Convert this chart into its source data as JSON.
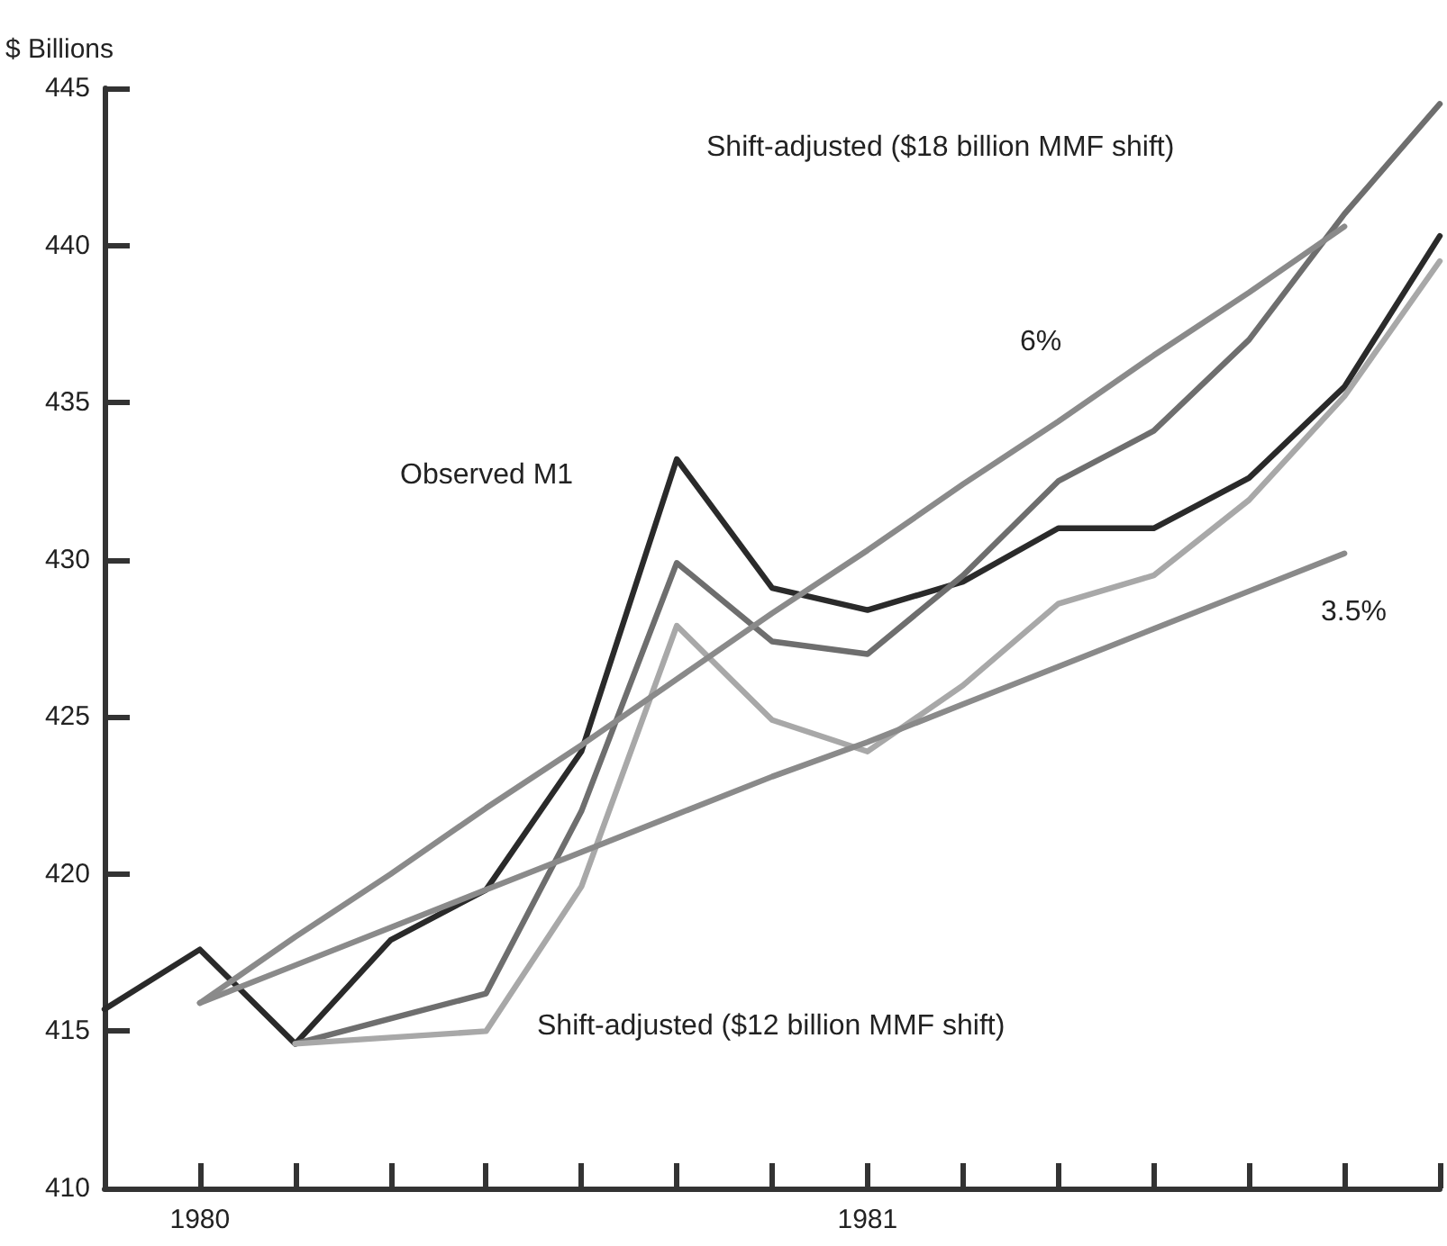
{
  "chart_data": {
    "type": "line",
    "ylabel": "$ Billions",
    "categories": [
      null,
      "1980",
      null,
      null,
      null,
      null,
      null,
      null,
      "1981",
      null,
      null,
      null,
      null,
      null,
      null
    ],
    "ylim": [
      410,
      445
    ],
    "yticks": [
      410,
      415,
      420,
      425,
      430,
      435,
      440,
      445
    ],
    "grid": false,
    "marker": "none",
    "line_style": "solid",
    "series": [
      {
        "color": "#2a2a2a",
        "values": [
          415.7,
          417.6,
          414.6,
          417.9,
          419.5,
          423.9,
          433.2,
          429.1,
          428.4,
          429.3,
          431.0,
          431.0,
          432.6,
          435.5,
          440.3
        ]
      },
      {
        "color": "#6e6e6e",
        "values": [
          null,
          null,
          414.6,
          415.4,
          416.2,
          422.0,
          429.9,
          427.4,
          427.0,
          429.5,
          432.5,
          434.1,
          437.0,
          441.0,
          444.5
        ]
      },
      {
        "color": "#a8a8a8",
        "values": [
          null,
          null,
          414.6,
          414.8,
          415.0,
          419.6,
          427.9,
          424.9,
          423.9,
          426.0,
          428.6,
          429.5,
          431.9,
          435.2,
          439.5
        ]
      },
      {
        "color": "#8a8a8a",
        "values": [
          null,
          415.9,
          418.0,
          420.0,
          422.1,
          424.1,
          426.2,
          428.3,
          430.3,
          432.4,
          434.4,
          436.5,
          438.5,
          440.6,
          null
        ]
      },
      {
        "color": "#8a8a8a",
        "values": [
          null,
          415.9,
          417.1,
          418.3,
          419.5,
          420.7,
          421.9,
          423.1,
          424.2,
          425.4,
          426.6,
          427.8,
          429.0,
          430.2,
          null
        ]
      }
    ],
    "annotations": [
      "Shift-adjusted ($18 billion MMF shift)",
      "6%",
      "Observed M1",
      "Shift-adjusted ($12 billion MMF shift)",
      "3.5%"
    ]
  }
}
